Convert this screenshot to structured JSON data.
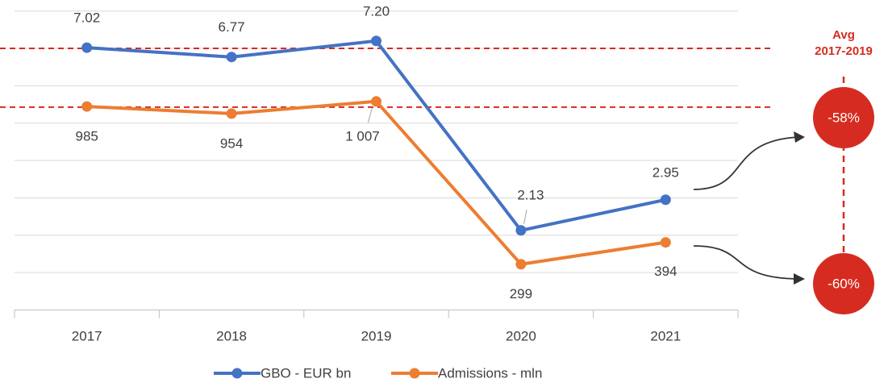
{
  "chart_data": {
    "type": "line",
    "categories": [
      "2017",
      "2018",
      "2019",
      "2020",
      "2021"
    ],
    "series": [
      {
        "name": "GBO - EUR bn",
        "color": "#4472c4",
        "values": [
          7.02,
          6.77,
          7.2,
          2.13,
          2.95
        ],
        "value_labels": [
          "7.02",
          "6.77",
          "7.20",
          "2.13",
          "2.95"
        ],
        "average": 7.0
      },
      {
        "name": "Admissions - mln",
        "color": "#ed7d31",
        "axis": "y2",
        "values": [
          985,
          954,
          1007,
          299,
          394
        ],
        "value_labels": [
          "985",
          "954",
          "1 007",
          "299",
          "394"
        ],
        "average": 982
      }
    ],
    "ylim": [
      0,
      8
    ],
    "yticks": [
      0,
      1,
      2,
      3,
      4,
      5,
      6,
      7,
      8
    ],
    "y2lim": [
      100,
      1400
    ],
    "grid": true,
    "legend": "bottom",
    "annotations": {
      "avg_title": [
        "Avg",
        "2017-2019"
      ],
      "changes": [
        "-58%",
        "-60%"
      ],
      "color": "#d62b20"
    }
  }
}
